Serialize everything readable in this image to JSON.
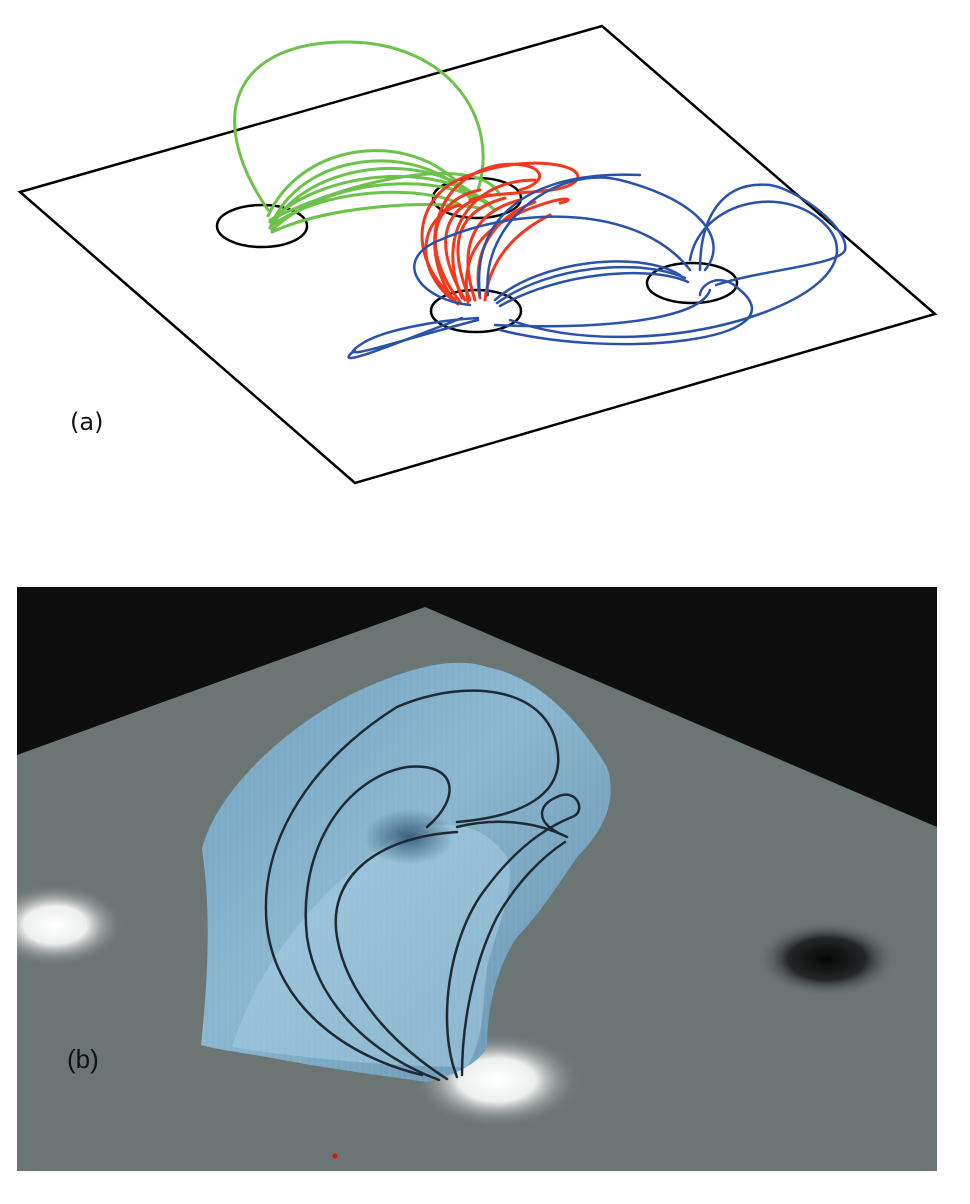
{
  "panel_a": {
    "label": "(a)",
    "colors": {
      "green": "#6cc24a",
      "red": "#f0391e",
      "blue": "#2a52a8",
      "outline": "#000000"
    }
  },
  "panel_b": {
    "label": "(b)",
    "colors": {
      "background": "#0d0d0d",
      "plane": "#6b7573",
      "dome": "#7fb0cf",
      "curves": "#1f2a33"
    }
  }
}
